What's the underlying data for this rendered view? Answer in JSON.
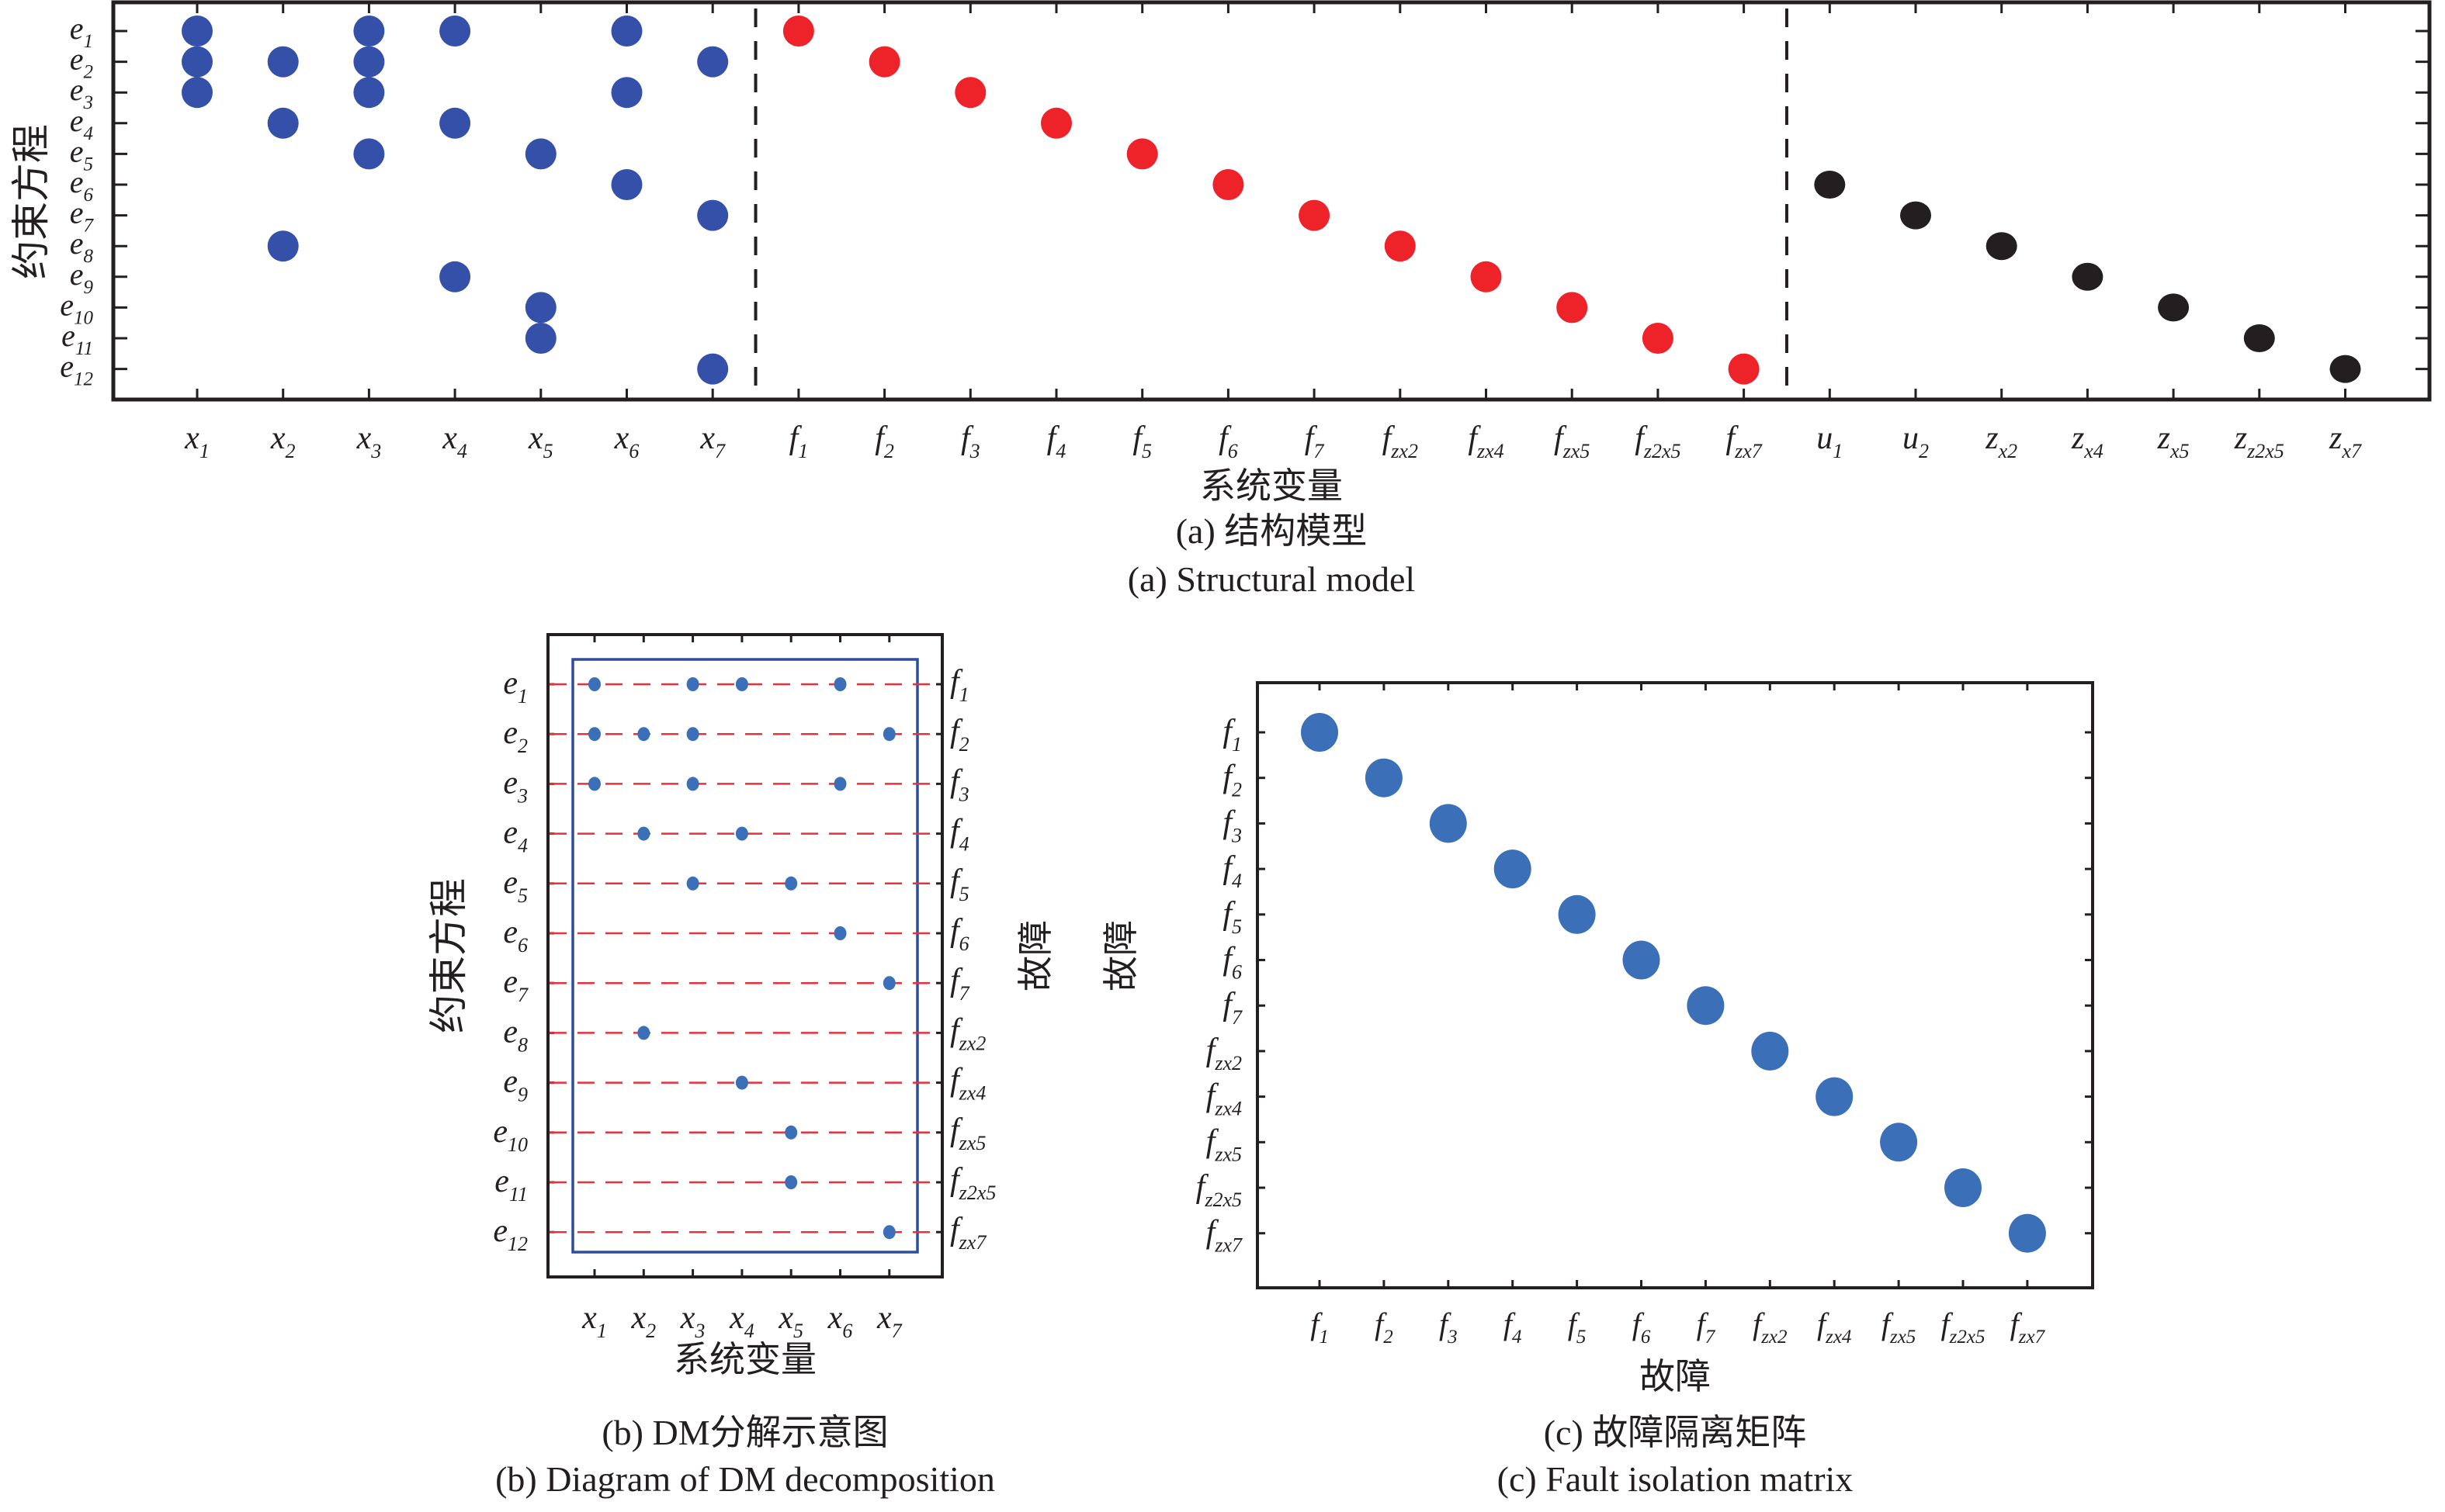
{
  "figure": {
    "panel_a": {
      "ylabel": "约束方程",
      "xlabel": "系统变量",
      "caption_cn": "(a) 结构模型",
      "caption_en": "(a) Structural model"
    },
    "panel_b": {
      "ylabel_left": "约束方程",
      "ylabel_right": "故障",
      "xlabel": "系统变量",
      "caption_cn": "(b) DM分解示意图",
      "caption_en": "(b) Diagram of DM decomposition"
    },
    "panel_c": {
      "ylabel": "故障",
      "xlabel": "故障",
      "caption_cn": "(c) 故障隔离矩阵",
      "caption_en": "(c) Fault isolation matrix"
    }
  },
  "colors": {
    "unknown_vars": "#3550a8",
    "faults": "#ee2229",
    "known_vars": "#231f20",
    "dm_points": "#3b6fb8",
    "dm_box": "#2e4d9a",
    "dm_lines": "#e8313a",
    "isolation_points": "#3b6fb8"
  },
  "chart_data": [
    {
      "type": "scatter",
      "title": "(a) Structural model",
      "xlabel": "系统变量",
      "ylabel": "约束方程",
      "rows": [
        {
          "base": "e",
          "sub": "1"
        },
        {
          "base": "e",
          "sub": "2"
        },
        {
          "base": "e",
          "sub": "3"
        },
        {
          "base": "e",
          "sub": "4"
        },
        {
          "base": "e",
          "sub": "5"
        },
        {
          "base": "e",
          "sub": "6"
        },
        {
          "base": "e",
          "sub": "7"
        },
        {
          "base": "e",
          "sub": "8"
        },
        {
          "base": "e",
          "sub": "9"
        },
        {
          "base": "e",
          "sub": "10"
        },
        {
          "base": "e",
          "sub": "11"
        },
        {
          "base": "e",
          "sub": "12"
        }
      ],
      "columns": [
        {
          "base": "x",
          "sub": "1",
          "group": "unknown"
        },
        {
          "base": "x",
          "sub": "2",
          "group": "unknown"
        },
        {
          "base": "x",
          "sub": "3",
          "group": "unknown"
        },
        {
          "base": "x",
          "sub": "4",
          "group": "unknown"
        },
        {
          "base": "x",
          "sub": "5",
          "group": "unknown"
        },
        {
          "base": "x",
          "sub": "6",
          "group": "unknown"
        },
        {
          "base": "x",
          "sub": "7",
          "group": "unknown"
        },
        {
          "base": "f",
          "sub": "1",
          "group": "fault"
        },
        {
          "base": "f",
          "sub": "2",
          "group": "fault"
        },
        {
          "base": "f",
          "sub": "3",
          "group": "fault"
        },
        {
          "base": "f",
          "sub": "4",
          "group": "fault"
        },
        {
          "base": "f",
          "sub": "5",
          "group": "fault"
        },
        {
          "base": "f",
          "sub": "6",
          "group": "fault"
        },
        {
          "base": "f",
          "sub": "7",
          "group": "fault"
        },
        {
          "base": "f",
          "sub": "zx2",
          "group": "fault"
        },
        {
          "base": "f",
          "sub": "zx4",
          "group": "fault"
        },
        {
          "base": "f",
          "sub": "zx5",
          "group": "fault"
        },
        {
          "base": "f",
          "sub": "z2x5",
          "group": "fault"
        },
        {
          "base": "f",
          "sub": "zx7",
          "group": "fault"
        },
        {
          "base": "u",
          "sub": "1",
          "group": "known"
        },
        {
          "base": "u",
          "sub": "2",
          "group": "known"
        },
        {
          "base": "z",
          "sub": "x2",
          "group": "known"
        },
        {
          "base": "z",
          "sub": "x4",
          "group": "known"
        },
        {
          "base": "z",
          "sub": "x5",
          "group": "known"
        },
        {
          "base": "z",
          "sub": "z2x5",
          "group": "known"
        },
        {
          "base": "z",
          "sub": "x7",
          "group": "known"
        }
      ],
      "separators_after_column": [
        7,
        19
      ],
      "points": [
        [
          1,
          1
        ],
        [
          1,
          3
        ],
        [
          1,
          4
        ],
        [
          1,
          6
        ],
        [
          2,
          1
        ],
        [
          2,
          2
        ],
        [
          2,
          3
        ],
        [
          2,
          7
        ],
        [
          3,
          1
        ],
        [
          3,
          3
        ],
        [
          3,
          6
        ],
        [
          4,
          2
        ],
        [
          4,
          4
        ],
        [
          5,
          3
        ],
        [
          5,
          5
        ],
        [
          6,
          6
        ],
        [
          7,
          7
        ],
        [
          8,
          2
        ],
        [
          9,
          4
        ],
        [
          10,
          5
        ],
        [
          11,
          5
        ],
        [
          12,
          7
        ],
        [
          1,
          8
        ],
        [
          2,
          9
        ],
        [
          3,
          10
        ],
        [
          4,
          11
        ],
        [
          5,
          12
        ],
        [
          6,
          13
        ],
        [
          7,
          14
        ],
        [
          8,
          15
        ],
        [
          9,
          16
        ],
        [
          10,
          17
        ],
        [
          11,
          18
        ],
        [
          12,
          19
        ],
        [
          6,
          20
        ],
        [
          7,
          21
        ],
        [
          8,
          22
        ],
        [
          9,
          23
        ],
        [
          10,
          24
        ],
        [
          11,
          25
        ],
        [
          12,
          26
        ]
      ]
    },
    {
      "type": "scatter",
      "title": "(b) Diagram of DM decomposition",
      "xlabel": "系统变量",
      "ylabel": "约束方程",
      "ylabel_right": "故障",
      "rows": [
        {
          "base": "e",
          "sub": "1"
        },
        {
          "base": "e",
          "sub": "2"
        },
        {
          "base": "e",
          "sub": "3"
        },
        {
          "base": "e",
          "sub": "4"
        },
        {
          "base": "e",
          "sub": "5"
        },
        {
          "base": "e",
          "sub": "6"
        },
        {
          "base": "e",
          "sub": "7"
        },
        {
          "base": "e",
          "sub": "8"
        },
        {
          "base": "e",
          "sub": "9"
        },
        {
          "base": "e",
          "sub": "10"
        },
        {
          "base": "e",
          "sub": "11"
        },
        {
          "base": "e",
          "sub": "12"
        }
      ],
      "right_rows": [
        {
          "base": "f",
          "sub": "1"
        },
        {
          "base": "f",
          "sub": "2"
        },
        {
          "base": "f",
          "sub": "3"
        },
        {
          "base": "f",
          "sub": "4"
        },
        {
          "base": "f",
          "sub": "5"
        },
        {
          "base": "f",
          "sub": "6"
        },
        {
          "base": "f",
          "sub": "7"
        },
        {
          "base": "f",
          "sub": "zx2"
        },
        {
          "base": "f",
          "sub": "zx4"
        },
        {
          "base": "f",
          "sub": "zx5"
        },
        {
          "base": "f",
          "sub": "z2x5"
        },
        {
          "base": "f",
          "sub": "zx7"
        }
      ],
      "columns": [
        {
          "base": "x",
          "sub": "1"
        },
        {
          "base": "x",
          "sub": "2"
        },
        {
          "base": "x",
          "sub": "3"
        },
        {
          "base": "x",
          "sub": "4"
        },
        {
          "base": "x",
          "sub": "5"
        },
        {
          "base": "x",
          "sub": "6"
        },
        {
          "base": "x",
          "sub": "7"
        }
      ],
      "points": [
        [
          1,
          1
        ],
        [
          1,
          3
        ],
        [
          1,
          4
        ],
        [
          1,
          6
        ],
        [
          2,
          1
        ],
        [
          2,
          2
        ],
        [
          2,
          3
        ],
        [
          2,
          7
        ],
        [
          3,
          1
        ],
        [
          3,
          3
        ],
        [
          3,
          6
        ],
        [
          4,
          2
        ],
        [
          4,
          4
        ],
        [
          5,
          3
        ],
        [
          5,
          5
        ],
        [
          6,
          6
        ],
        [
          7,
          7
        ],
        [
          8,
          2
        ],
        [
          9,
          4
        ],
        [
          10,
          5
        ],
        [
          11,
          5
        ],
        [
          12,
          7
        ]
      ]
    },
    {
      "type": "scatter",
      "title": "(c) Fault isolation matrix",
      "xlabel": "故障",
      "ylabel": "故障",
      "rows": [
        {
          "base": "f",
          "sub": "1"
        },
        {
          "base": "f",
          "sub": "2"
        },
        {
          "base": "f",
          "sub": "3"
        },
        {
          "base": "f",
          "sub": "4"
        },
        {
          "base": "f",
          "sub": "5"
        },
        {
          "base": "f",
          "sub": "6"
        },
        {
          "base": "f",
          "sub": "7"
        },
        {
          "base": "f",
          "sub": "zx2"
        },
        {
          "base": "f",
          "sub": "zx4"
        },
        {
          "base": "f",
          "sub": "zx5"
        },
        {
          "base": "f",
          "sub": "z2x5"
        },
        {
          "base": "f",
          "sub": "zx7"
        }
      ],
      "columns": [
        {
          "base": "f",
          "sub": "1"
        },
        {
          "base": "f",
          "sub": "2"
        },
        {
          "base": "f",
          "sub": "3"
        },
        {
          "base": "f",
          "sub": "4"
        },
        {
          "base": "f",
          "sub": "5"
        },
        {
          "base": "f",
          "sub": "6"
        },
        {
          "base": "f",
          "sub": "7"
        },
        {
          "base": "f",
          "sub": "zx2"
        },
        {
          "base": "f",
          "sub": "zx4"
        },
        {
          "base": "f",
          "sub": "zx5"
        },
        {
          "base": "f",
          "sub": "z2x5"
        },
        {
          "base": "f",
          "sub": "zx7"
        }
      ],
      "points": [
        [
          1,
          1
        ],
        [
          2,
          2
        ],
        [
          3,
          3
        ],
        [
          4,
          4
        ],
        [
          5,
          5
        ],
        [
          6,
          6
        ],
        [
          7,
          7
        ],
        [
          8,
          8
        ],
        [
          9,
          9
        ],
        [
          10,
          10
        ],
        [
          11,
          11
        ],
        [
          12,
          12
        ]
      ]
    }
  ]
}
